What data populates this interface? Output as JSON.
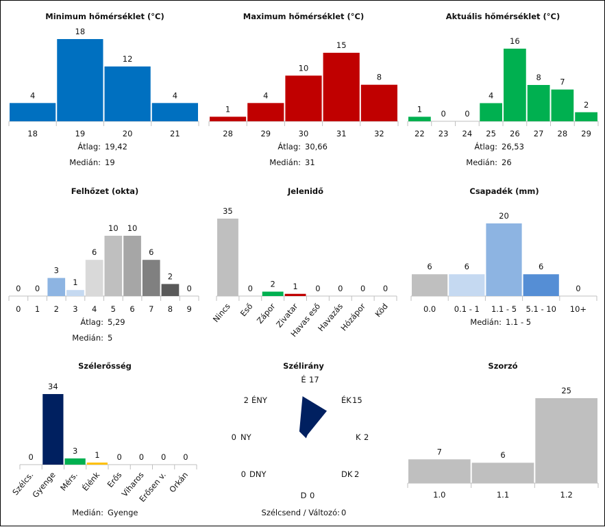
{
  "chart_data": [
    {
      "type": "bar",
      "title": "Minimum hőmérséklet (°C)",
      "categories": [
        "18",
        "19",
        "20",
        "21"
      ],
      "values": [
        4,
        18,
        12,
        4
      ],
      "colors": [
        "#0070c0",
        "#0070c0",
        "#0070c0",
        "#0070c0"
      ],
      "stats": [
        {
          "label": "Átlag:",
          "value": "19,42"
        },
        {
          "label": "Medián:",
          "value": "19"
        }
      ]
    },
    {
      "type": "bar",
      "title": "Maximum hőmérséklet (°C)",
      "categories": [
        "28",
        "29",
        "30",
        "31",
        "32"
      ],
      "values": [
        1,
        4,
        10,
        15,
        8
      ],
      "colors": [
        "#c00000",
        "#c00000",
        "#c00000",
        "#c00000",
        "#c00000"
      ],
      "stats": [
        {
          "label": "Átlag:",
          "value": "30,66"
        },
        {
          "label": "Medián:",
          "value": "31"
        }
      ]
    },
    {
      "type": "bar",
      "title": "Aktuális hőmérséklet (°C)",
      "categories": [
        "22",
        "23",
        "24",
        "25",
        "26",
        "27",
        "28",
        "29"
      ],
      "values": [
        1,
        0,
        0,
        4,
        16,
        8,
        7,
        2
      ],
      "colors": [
        "#00b050",
        "#00b050",
        "#00b050",
        "#00b050",
        "#00b050",
        "#00b050",
        "#00b050",
        "#00b050"
      ],
      "stats": [
        {
          "label": "Átlag:",
          "value": "26,53"
        },
        {
          "label": "Medián:",
          "value": "26"
        }
      ]
    },
    {
      "type": "bar",
      "title": "Felhőzet (okta)",
      "categories": [
        "0",
        "1",
        "2",
        "3",
        "4",
        "5",
        "6",
        "7",
        "8",
        "9"
      ],
      "values": [
        0,
        0,
        3,
        1,
        6,
        10,
        10,
        6,
        2,
        0
      ],
      "colors": [
        "#8db4e2",
        "#8db4e2",
        "#8db4e2",
        "#c5d9f1",
        "#d9d9d9",
        "#bfbfbf",
        "#a6a6a6",
        "#808080",
        "#595959",
        "#404040"
      ],
      "stats": [
        {
          "label": "Átlag:",
          "value": "5,29"
        },
        {
          "label": "Medián:",
          "value": "5"
        }
      ]
    },
    {
      "type": "bar",
      "title": "Jelenidő",
      "categories": [
        "Nincs",
        "Eső",
        "Zápor",
        "Zivatar",
        "Havas eső",
        "Havazás",
        "Hózápor",
        "Köd"
      ],
      "values": [
        35,
        0,
        2,
        1,
        0,
        0,
        0,
        0
      ],
      "colors": [
        "#bfbfbf",
        "#bfbfbf",
        "#00b050",
        "#c00000",
        "#bfbfbf",
        "#bfbfbf",
        "#bfbfbf",
        "#bfbfbf"
      ],
      "stats": []
    },
    {
      "type": "bar",
      "title": "Csapadék (mm)",
      "categories": [
        "0.0",
        "0.1 - 1",
        "1.1 - 5",
        "5.1 - 10",
        "10+"
      ],
      "values": [
        6,
        6,
        20,
        6,
        0
      ],
      "colors": [
        "#bfbfbf",
        "#c5d9f1",
        "#8db4e2",
        "#558ed5",
        "#1f4e9c"
      ],
      "stats": [
        {
          "label": "Medián:",
          "value": "1.1 - 5"
        }
      ]
    },
    {
      "type": "bar",
      "title": "Szélerősség",
      "categories": [
        "Szélcs.",
        "Gyenge",
        "Mérs.",
        "Élénk",
        "Erős",
        "Viharos",
        "Erősen v.",
        "Orkán"
      ],
      "values": [
        0,
        34,
        3,
        1,
        0,
        0,
        0,
        0
      ],
      "colors": [
        "#002060",
        "#002060",
        "#00b050",
        "#ffc000",
        "#ff0000",
        "#c00000",
        "#7030a0",
        "#000000"
      ],
      "stats": [
        {
          "label": "Medián:",
          "value": "Gyenge"
        }
      ]
    },
    {
      "type": "radar",
      "title": "Szélirány",
      "directions": [
        "É",
        "ÉK",
        "K",
        "DK",
        "D",
        "DNY",
        "NY",
        "ÉNY"
      ],
      "values": [
        17,
        15,
        2,
        2,
        0,
        0,
        0,
        2
      ],
      "color": "#002060",
      "calm_label": "Szélcsend / Változó:",
      "calm_value": "0"
    },
    {
      "type": "bar",
      "title": "Szorzó",
      "categories": [
        "1.0",
        "1.1",
        "1.2"
      ],
      "values": [
        7,
        6,
        25
      ],
      "colors": [
        "#bfbfbf",
        "#bfbfbf",
        "#bfbfbf"
      ],
      "stats": []
    }
  ]
}
